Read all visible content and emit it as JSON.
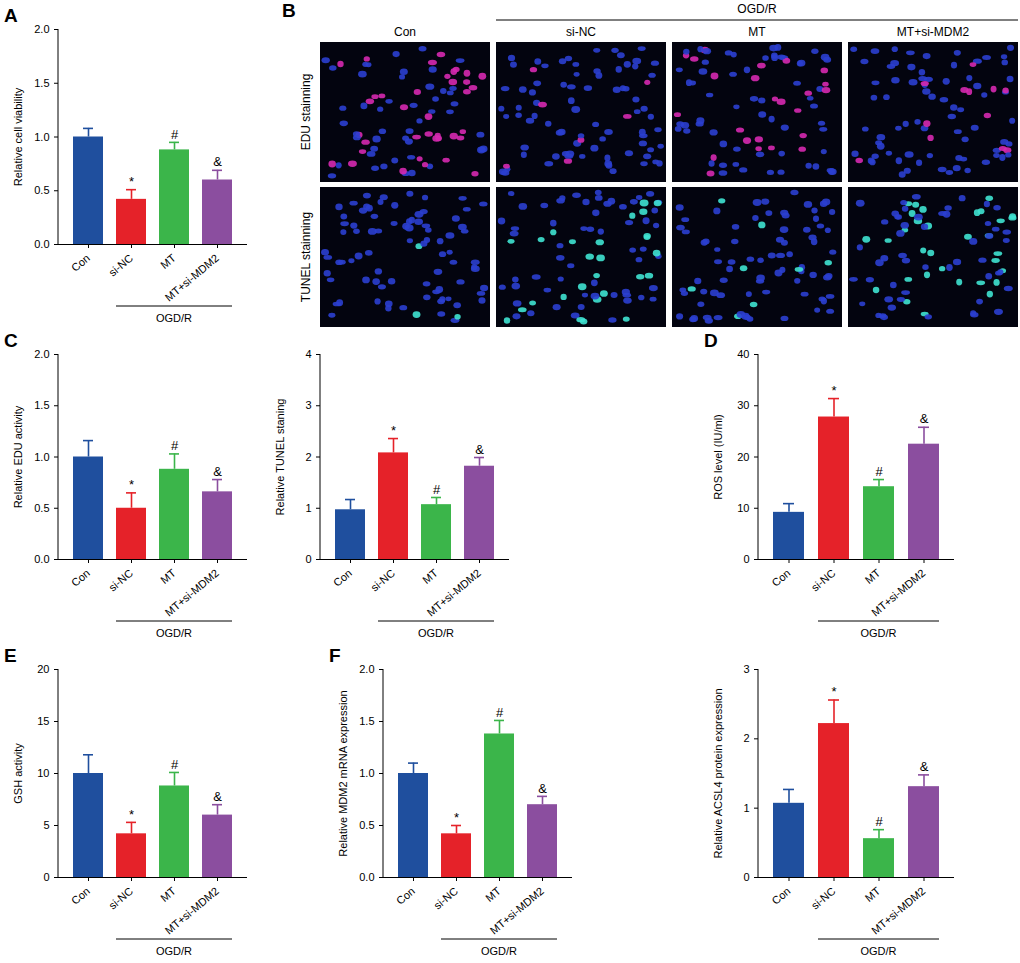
{
  "chart_data": [
    {
      "panel": "A",
      "type": "bar",
      "ylabel": "Relative cell viability",
      "categories": [
        "Con",
        "si-NC",
        "MT",
        "MT+si-MDM2"
      ],
      "values": [
        1.0,
        0.42,
        0.88,
        0.6
      ],
      "errors": [
        0.08,
        0.09,
        0.07,
        0.09
      ],
      "colors": [
        "#1f4f9e",
        "#e52229",
        "#3bb54a",
        "#8b4e9f"
      ],
      "significance": [
        null,
        "*",
        "#",
        "&"
      ],
      "group_label": "OGD/R",
      "group_categories": [
        "si-NC",
        "MT",
        "MT+si-MDM2"
      ],
      "ylim": [
        0,
        2
      ],
      "yticks": [
        {
          "value": 0,
          "label": "0.0"
        },
        0.5,
        {
          "value": 1,
          "label": "1.0"
        },
        1.5,
        {
          "value": 2,
          "label": "2.0"
        }
      ]
    },
    {
      "panel": "B",
      "type": "image",
      "header": "OGD/R",
      "columns": [
        "Con",
        "si-NC",
        "MT",
        "MT+si-MDM2"
      ],
      "header_columns": [
        "si-NC",
        "MT",
        "MT+si-MDM2"
      ],
      "rows": [
        "EDU stainning",
        "TUNEL stainning"
      ]
    },
    {
      "panel": "C",
      "type": "bar",
      "ylabel": "Relative EDU activity",
      "categories": [
        "Con",
        "si-NC",
        "MT",
        "MT+si-MDM2"
      ],
      "values": [
        1.0,
        0.5,
        0.88,
        0.66
      ],
      "errors": [
        0.16,
        0.15,
        0.15,
        0.12
      ],
      "colors": [
        "#1f4f9e",
        "#e52229",
        "#3bb54a",
        "#8b4e9f"
      ],
      "significance": [
        null,
        "*",
        "#",
        "&"
      ],
      "group_label": "OGD/R",
      "group_categories": [
        "si-NC",
        "MT",
        "MT+si-MDM2"
      ],
      "ylim": [
        0,
        2
      ],
      "yticks": [
        {
          "value": 0,
          "label": "0.0"
        },
        0.5,
        {
          "value": 1,
          "label": "1.0"
        },
        1.5,
        {
          "value": 2,
          "label": "2.0"
        }
      ]
    },
    {
      "type": "bar",
      "ylabel": "Relative TUNEL staning",
      "categories": [
        "Con",
        "si-NC",
        "MT",
        "MT+si-MDM2"
      ],
      "values": [
        0.97,
        2.08,
        1.07,
        1.82
      ],
      "errors": [
        0.2,
        0.28,
        0.14,
        0.17
      ],
      "colors": [
        "#1f4f9e",
        "#e52229",
        "#3bb54a",
        "#8b4e9f"
      ],
      "significance": [
        null,
        "*",
        "#",
        "&"
      ],
      "group_label": "OGD/R",
      "group_categories": [
        "si-NC",
        "MT",
        "MT+si-MDM2"
      ],
      "ylim": [
        0,
        4
      ],
      "yticks": [
        0,
        1,
        2,
        3,
        4
      ]
    },
    {
      "panel": "D",
      "type": "bar",
      "ylabel": "ROS level (IU/ml)",
      "categories": [
        "Con",
        "si-NC",
        "MT",
        "MT+si-MDM2"
      ],
      "values": [
        9.2,
        27.8,
        14.2,
        22.5
      ],
      "errors": [
        1.7,
        3.6,
        1.4,
        3.3
      ],
      "colors": [
        "#1f4f9e",
        "#e52229",
        "#3bb54a",
        "#8b4e9f"
      ],
      "significance": [
        null,
        "*",
        "#",
        "&"
      ],
      "group_label": "OGD/R",
      "group_categories": [
        "si-NC",
        "MT",
        "MT+si-MDM2"
      ],
      "ylim": [
        0,
        40
      ],
      "yticks": [
        0,
        10,
        20,
        30,
        40
      ]
    },
    {
      "panel": "E",
      "type": "bar",
      "ylabel": "GSH activity",
      "categories": [
        "Con",
        "si-NC",
        "MT",
        "MT+si-MDM2"
      ],
      "values": [
        10.0,
        4.2,
        8.8,
        6.0
      ],
      "errors": [
        1.8,
        1.1,
        1.3,
        1.0
      ],
      "colors": [
        "#1f4f9e",
        "#e52229",
        "#3bb54a",
        "#8b4e9f"
      ],
      "significance": [
        null,
        "*",
        "#",
        "&"
      ],
      "group_label": "OGD/R",
      "group_categories": [
        "si-NC",
        "MT",
        "MT+si-MDM2"
      ],
      "ylim": [
        0,
        20
      ],
      "yticks": [
        0,
        5,
        10,
        15,
        20
      ]
    },
    {
      "panel": "F",
      "type": "bar",
      "ylabel": "Relative MDM2 mRNA expression",
      "categories": [
        "Con",
        "si-NC",
        "MT",
        "MT+si-MDM2"
      ],
      "values": [
        1.0,
        0.42,
        1.38,
        0.7
      ],
      "errors": [
        0.1,
        0.08,
        0.13,
        0.08
      ],
      "colors": [
        "#1f4f9e",
        "#e52229",
        "#3bb54a",
        "#8b4e9f"
      ],
      "significance": [
        null,
        "*",
        "#",
        "&"
      ],
      "group_label": "OGD/R",
      "group_categories": [
        "si-NC",
        "MT",
        "MT+si-MDM2"
      ],
      "ylim": [
        0,
        2
      ],
      "yticks": [
        {
          "value": 0,
          "label": "0.0"
        },
        0.5,
        {
          "value": 1,
          "label": "1.0"
        },
        1.5,
        {
          "value": 2,
          "label": "2.0"
        }
      ]
    },
    {
      "type": "bar",
      "ylabel": "Relative ACSL4 protein expression",
      "categories": [
        "Con",
        "si-NC",
        "MT",
        "MT+si-MDM2"
      ],
      "values": [
        1.07,
        2.22,
        0.56,
        1.31
      ],
      "errors": [
        0.2,
        0.34,
        0.13,
        0.17
      ],
      "colors": [
        "#1f4f9e",
        "#e52229",
        "#3bb54a",
        "#8b4e9f"
      ],
      "significance": [
        null,
        "*",
        "#",
        "&"
      ],
      "group_label": "OGD/R",
      "group_categories": [
        "si-NC",
        "MT",
        "MT+si-MDM2"
      ],
      "ylim": [
        0,
        3
      ],
      "yticks": [
        0,
        1,
        2,
        3
      ]
    }
  ]
}
